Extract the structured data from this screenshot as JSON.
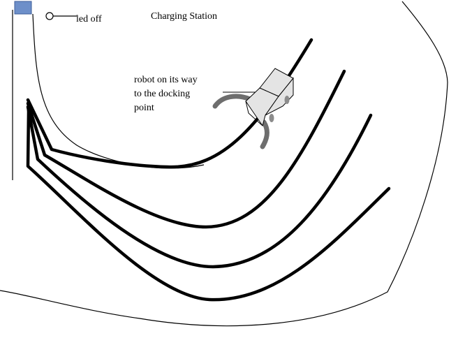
{
  "labels": {
    "led_status": "led off",
    "station_title": "Charging Station",
    "robot_caption": [
      "robot on its way",
      "to the docking",
      "point"
    ]
  },
  "colors": {
    "background": "#ffffff",
    "ink": "#000000",
    "led_square_fill": "#6d8fc9",
    "led_square_stroke": "#3d5c99",
    "robot_body": "#e4e4e4",
    "robot_wheels": "#8c8c8c",
    "robot_arms": "#6e6e6e"
  },
  "icons": {
    "led": "hollow-circle-icon",
    "station_indicator": "blue-square-icon",
    "robot": "robot-box-icon"
  }
}
